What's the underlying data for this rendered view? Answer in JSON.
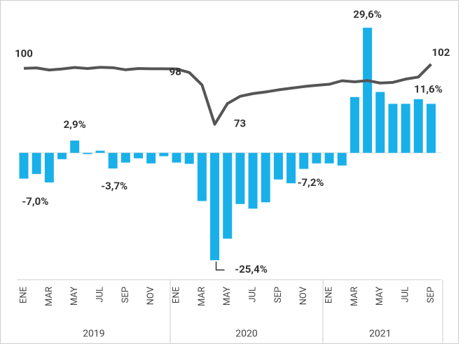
{
  "chart_data": {
    "type": "bar",
    "categories": [
      "ENE",
      null,
      "MAR",
      null,
      "MAY",
      null,
      "JUL",
      null,
      "SEP",
      null,
      "NOV",
      null,
      "ENE",
      null,
      "MAR",
      null,
      "MAY",
      null,
      "JUL",
      null,
      "SEP",
      null,
      "NOV",
      null,
      "ENE",
      null,
      "MAR",
      null,
      "MAY",
      null,
      "JUL",
      null,
      "SEP"
    ],
    "x_groups": [
      "2019",
      "2020",
      "2021"
    ],
    "series": [
      {
        "type": "bar",
        "color": "#19b0ea",
        "values": [
          -6.1,
          -5.0,
          -7.0,
          -1.5,
          2.9,
          -0.3,
          0.5,
          -3.7,
          -2.3,
          -1.3,
          -2.5,
          -0.8,
          -2.3,
          -2.6,
          -11.4,
          -25.4,
          -20.3,
          -12.1,
          -13.2,
          -11.7,
          -6.3,
          -7.2,
          -3.8,
          -2.5,
          -2.5,
          -3.0,
          13.2,
          29.6,
          14.4,
          11.6,
          11.6,
          12.7,
          11.6
        ],
        "value_labels": [
          null,
          null,
          "-7,0%",
          null,
          "2,9%",
          null,
          null,
          "-3,7%",
          null,
          null,
          null,
          null,
          null,
          null,
          null,
          "-25,4%",
          null,
          null,
          null,
          null,
          null,
          "-7,2%",
          null,
          null,
          null,
          null,
          null,
          "29,6%",
          null,
          null,
          null,
          null,
          "11,6%"
        ]
      },
      {
        "type": "line",
        "axis": "y2",
        "color": "#555555",
        "values": [
          100,
          100.2,
          99.2,
          99.7,
          100.4,
          99.9,
          100.5,
          100.3,
          99.3,
          99.9,
          99.8,
          99.8,
          99.7,
          98,
          92,
          73,
          83,
          86.5,
          87.8,
          88.6,
          89.6,
          90.4,
          91.2,
          91.8,
          92.3,
          94,
          93.5,
          94.1,
          92.9,
          93.2,
          94.8,
          95.8,
          102
        ],
        "value_labels": [
          "100",
          null,
          null,
          null,
          null,
          null,
          null,
          null,
          null,
          null,
          null,
          null,
          null,
          "98",
          null,
          "73",
          null,
          null,
          null,
          null,
          null,
          null,
          null,
          null,
          null,
          null,
          null,
          null,
          null,
          null,
          null,
          null,
          "102"
        ]
      }
    ],
    "ylim": [
      -30,
      34.5
    ],
    "y2lim": [
      -2,
      129.6
    ]
  }
}
